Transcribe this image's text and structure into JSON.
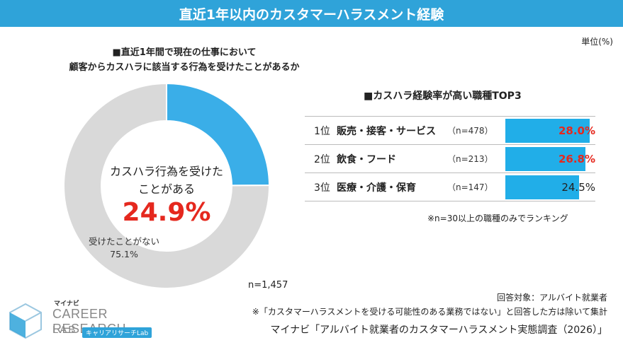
{
  "header": {
    "title": "直近1年以内のカスタマーハラスメント経験"
  },
  "unit": "単位(%)",
  "question": {
    "line1": "■直近1年間で現在の仕事において",
    "line2": "顧客からカスハラに該当する行為を受けたことがあるか"
  },
  "donut": {
    "center_line1": "カスハラ行為を受けた",
    "center_line2": "ことがある",
    "center_value": "24.9%",
    "no_label": "受けたことがない",
    "no_value": "75.1%",
    "n": "n=1,457"
  },
  "ranking": {
    "title": "■カスハラ経験率が高い職種TOP3",
    "rows": [
      {
        "rank": "1位",
        "job": "販売・接客・サービス",
        "n": "（n=478）",
        "value_text": "28.0%",
        "highlight": true
      },
      {
        "rank": "2位",
        "job": "飲食・フード",
        "n": "（n=213）",
        "value_text": "26.8%",
        "highlight": true
      },
      {
        "rank": "3位",
        "job": "医療・介護・保育",
        "n": "（n=147）",
        "value_text": "24.5%",
        "highlight": false
      }
    ],
    "note": "※n=30以上の職種のみでランキング"
  },
  "footer": {
    "target": "回答対象：アルバイト就業者",
    "exclude": "※「カスタマーハラスメントを受ける可能性のある業務ではない」と回答した方は除いて集計",
    "source": "マイナビ「アルバイト就業者のカスタマーハラスメント実態調査（2026）」"
  },
  "logo": {
    "maker": "マイナビ",
    "main": "CAREER RESEARCH",
    "lab": "LAB",
    "sub": "キャリアリサーチLab"
  },
  "colors": {
    "accent": "#2fa3d9",
    "donut_yes": "#3aaee8",
    "donut_no": "#d9d9d9",
    "bar": "#21aee8",
    "highlight": "#e5281e"
  },
  "chart_data": [
    {
      "type": "pie",
      "categories": [
        "カスハラ行為を受けたことがある",
        "受けたことがない"
      ],
      "values": [
        24.9,
        75.1
      ]
    },
    {
      "type": "bar",
      "title": "■カスハラ経験率が高い職種TOP3",
      "categories": [
        "販売・接客・サービス",
        "飲食・フード",
        "医療・介護・保育"
      ],
      "values": [
        28.0,
        26.8,
        24.5
      ]
    }
  ]
}
